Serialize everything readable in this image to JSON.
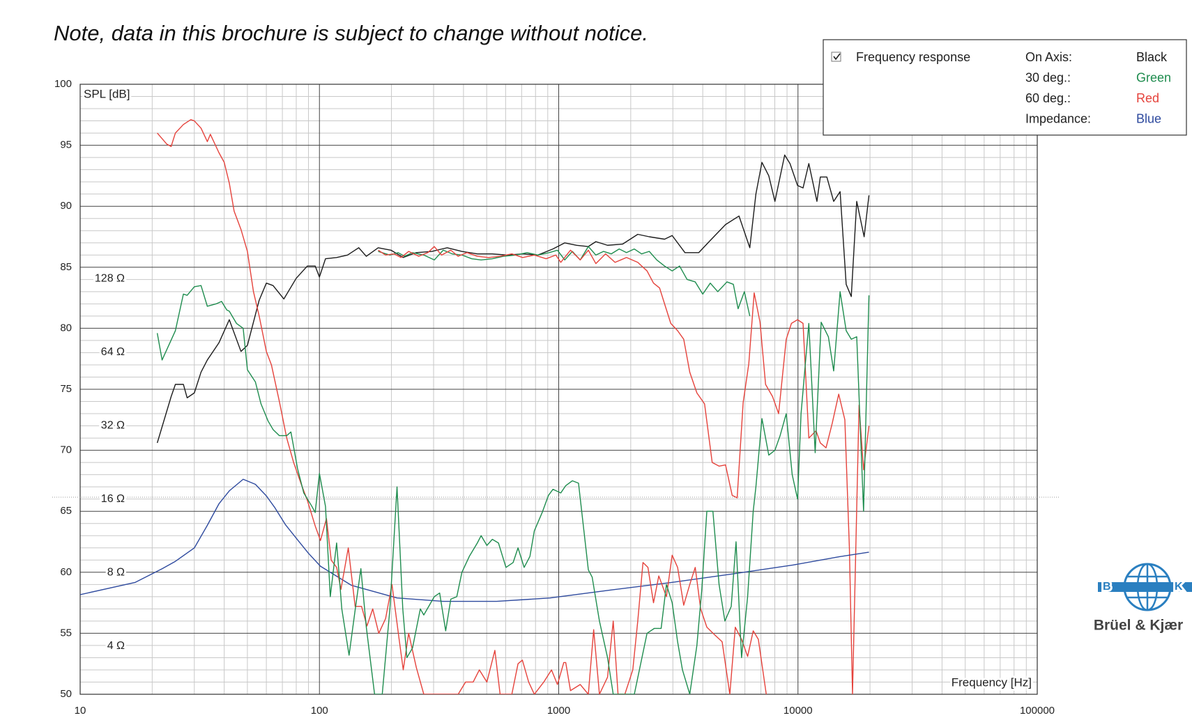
{
  "chart_data": {
    "type": "line",
    "title": "Note, data in this brochure is subject to change without notice.",
    "x_label": "Frequency [Hz]",
    "y_label": "SPL [dB]",
    "xscale": "log",
    "xlim": [
      10,
      100000
    ],
    "xticks": [
      10,
      100,
      1000,
      10000,
      100000
    ],
    "ylim": [
      50,
      100
    ],
    "yticks": [
      50,
      55,
      60,
      65,
      70,
      75,
      80,
      85,
      90,
      95,
      100
    ],
    "y2scale": "log",
    "y2lim": [
      2.54,
      801
    ],
    "y2ticks": [
      {
        "value": 4,
        "label": "4 Ω"
      },
      {
        "value": 8,
        "label": "8 Ω"
      },
      {
        "value": 16,
        "label": "16 Ω"
      },
      {
        "value": 32,
        "label": "32 Ω"
      },
      {
        "value": 64,
        "label": "64 Ω"
      },
      {
        "value": 128,
        "label": "128 Ω"
      }
    ],
    "grid": true,
    "minor_grid": true,
    "legend": {
      "title": "Frequency response",
      "position": "upper right",
      "color_names": [
        "Black",
        "Green",
        "Red",
        "Blue"
      ]
    },
    "series": [
      {
        "name": "On Axis:",
        "color": "#1b1b1b",
        "x": [
          21,
          24,
          25,
          27,
          28,
          30,
          32,
          34,
          38,
          42,
          47,
          50,
          56,
          60,
          64,
          71,
          80,
          89,
          96,
          100,
          106,
          118,
          131,
          146,
          157,
          176,
          199,
          224,
          254,
          295,
          342,
          394,
          457,
          528,
          611,
          707,
          818,
          946,
          1060,
          1190,
          1330,
          1430,
          1600,
          1850,
          2140,
          2390,
          2770,
          2980,
          3370,
          3850,
          4300,
          4980,
          5670,
          6290,
          6670,
          7070,
          7550,
          8010,
          8800,
          9260,
          9960,
          10500,
          11100,
          12000,
          12400,
          13200,
          14100,
          15000,
          15900,
          16700,
          17600,
          18900,
          19800
        ],
        "values": [
          70.6,
          74.4,
          75.4,
          75.4,
          74.3,
          74.7,
          76.4,
          77.4,
          78.8,
          80.7,
          78.1,
          78.6,
          82.3,
          83.7,
          83.5,
          82.4,
          84.1,
          85.1,
          85.1,
          84.2,
          85.7,
          85.8,
          86.0,
          86.6,
          85.9,
          86.6,
          86.4,
          85.8,
          86.2,
          86.3,
          86.6,
          86.3,
          86.1,
          86.1,
          86.0,
          86.1,
          86.0,
          86.5,
          87.0,
          86.8,
          86.7,
          87.1,
          86.8,
          86.9,
          87.7,
          87.5,
          87.3,
          87.6,
          86.2,
          86.2,
          87.2,
          88.5,
          89.2,
          86.6,
          91.0,
          93.6,
          92.5,
          90.4,
          94.2,
          93.5,
          91.7,
          91.5,
          93.5,
          90.4,
          92.4,
          92.4,
          90.4,
          91.2,
          83.6,
          82.6,
          90.4,
          87.5,
          90.9
        ]
      },
      {
        "name": "30 deg.:",
        "color": "#1e8c4e",
        "x": [
          176,
          197,
          213,
          227,
          245,
          273,
          302,
          329,
          359,
          394,
          433,
          474,
          528,
          587,
          660,
          737,
          818,
          912,
          988,
          1060,
          1140,
          1230,
          1330,
          1430,
          1540,
          1660,
          1790,
          1920,
          2070,
          2220,
          2390,
          2570,
          2770,
          2980,
          3200,
          3440,
          3720,
          4000,
          4300,
          4620,
          5050,
          5370,
          5620,
          5970,
          6290
        ],
        "values": [
          86.3,
          86.0,
          86.2,
          85.9,
          86.2,
          86.0,
          85.6,
          86.4,
          86.1,
          86.0,
          85.7,
          85.6,
          85.7,
          85.9,
          86.0,
          86.2,
          86.0,
          86.2,
          86.4,
          85.6,
          86.3,
          85.6,
          86.7,
          86.0,
          86.3,
          86.1,
          86.5,
          86.2,
          86.5,
          86.1,
          86.3,
          85.6,
          85.1,
          84.7,
          85.1,
          84.0,
          83.8,
          82.8,
          83.7,
          83.0,
          83.8,
          83.6,
          81.6,
          83.0,
          81.0
        ]
      },
      {
        "name": "60 deg.:",
        "color": "#e5423b",
        "x": [
          176,
          189,
          205,
          219,
          236,
          260,
          284,
          302,
          324,
          354,
          380,
          414,
          457,
          509,
          569,
          637,
          707,
          791,
          886,
          973,
          1020,
          1120,
          1230,
          1330,
          1430,
          1570,
          1720,
          1920,
          2140,
          2340,
          2490,
          2640,
          2770,
          2940,
          3140,
          3330,
          3530,
          3780,
          4070,
          4380,
          4680,
          4980,
          5310,
          5570,
          5900,
          6230,
          6560,
          6940,
          7320,
          7830,
          8300,
          8930,
          9390,
          9960,
          10500,
          11100,
          11900,
          12400,
          13100,
          13900,
          14800,
          15700,
          16400,
          16900,
          18000,
          18800,
          19800
        ],
        "values": [
          86.4,
          86.0,
          86.1,
          85.8,
          86.3,
          85.9,
          86.2,
          86.7,
          86.0,
          86.4,
          85.9,
          86.2,
          85.9,
          85.8,
          85.9,
          86.1,
          85.8,
          86.0,
          85.7,
          86.0,
          85.4,
          86.4,
          85.6,
          86.4,
          85.3,
          86.1,
          85.4,
          85.8,
          85.4,
          84.7,
          83.7,
          83.3,
          82.0,
          80.4,
          79.8,
          79.1,
          76.4,
          74.7,
          73.8,
          69.0,
          68.7,
          68.8,
          66.3,
          66.1,
          73.9,
          77.1,
          82.9,
          80.5,
          75.4,
          74.4,
          73.0,
          79.1,
          80.4,
          80.7,
          80.4,
          71.0,
          71.6,
          70.6,
          70.2,
          72.2,
          74.6,
          72.5,
          62.0,
          50.0,
          73.7,
          68.4,
          72.0
        ]
      },
      {
        "name": "Impedance:",
        "color": "#2e4a9e",
        "axis": "y2",
        "x": [
          10,
          17,
          22,
          25,
          30,
          34,
          38,
          42,
          48,
          54,
          60,
          65,
          72,
          81,
          90,
          101,
          136,
          211,
          329,
          550,
          920,
          1670,
          2980,
          5330,
          9560,
          14900,
          19800
        ],
        "values": [
          6.5,
          7.3,
          8.3,
          8.9,
          10.1,
          12.5,
          15.3,
          17.3,
          19.3,
          18.4,
          16.5,
          14.8,
          12.6,
          10.9,
          9.6,
          8.5,
          7.1,
          6.3,
          6.1,
          6.1,
          6.3,
          6.8,
          7.3,
          7.9,
          8.6,
          9.3,
          9.7
        ]
      },
      {
        "color": "#e5423b",
        "x": [
          21,
          23,
          24,
          25,
          27,
          29,
          30,
          32,
          34,
          35,
          38,
          40,
          42,
          44,
          47,
          50,
          53,
          56,
          60,
          63,
          68,
          73,
          78,
          84,
          89,
          96,
          101,
          107,
          112,
          118,
          123,
          132,
          141,
          150,
          158,
          167,
          177,
          189,
          201,
          215,
          224,
          236,
          254,
          273,
          305,
          329,
          380,
          408,
          439,
          466,
          501,
          541,
          569,
          637,
          676,
          705,
          749,
          791,
          866,
          933,
          988,
          1050,
          1070,
          1120,
          1230,
          1330,
          1400,
          1480,
          1600,
          1690,
          1770,
          1890,
          2040,
          2140,
          2250,
          2360,
          2490,
          2620,
          2820,
          2980,
          3140,
          3330,
          3530,
          3720,
          3920,
          4160,
          4470,
          4820,
          5190,
          5470,
          5810,
          6160,
          6500,
          6830,
          7370
        ],
        "values": [
          96.0,
          95.1,
          94.9,
          96.0,
          96.7,
          97.1,
          97.0,
          96.4,
          95.3,
          95.9,
          94.4,
          93.6,
          91.9,
          89.6,
          88.1,
          86.3,
          83.0,
          81.0,
          78.1,
          77.0,
          74.0,
          71.0,
          69.0,
          67.2,
          65.9,
          63.8,
          62.6,
          64.4,
          61.0,
          60.4,
          58.6,
          62.0,
          57.2,
          57.2,
          55.6,
          57.0,
          55.0,
          56.2,
          59.0,
          54.6,
          52.0,
          55.0,
          52.2,
          50.0,
          50.0,
          50.0,
          50.0,
          51.0,
          51.0,
          52.0,
          51.0,
          53.6,
          50.0,
          50.0,
          52.5,
          52.8,
          51.0,
          50.0,
          51.0,
          52.0,
          50.8,
          52.6,
          52.6,
          50.3,
          50.8,
          50.0,
          55.3,
          50.0,
          51.4,
          56.0,
          50.0,
          50.0,
          52.0,
          56.0,
          60.8,
          60.4,
          57.5,
          59.7,
          58.0,
          61.4,
          60.4,
          57.3,
          59.0,
          60.4,
          57.0,
          55.5,
          54.9,
          54.3,
          50.0,
          55.5,
          54.5,
          53.1,
          55.2,
          54.5,
          50.0
        ]
      },
      {
        "color": "#1e8c4e",
        "x": [
          21,
          22,
          25,
          27,
          28,
          30,
          32,
          34,
          37,
          39,
          41,
          42,
          45,
          48,
          50,
          54,
          57,
          61,
          64,
          68,
          73,
          76,
          81,
          86,
          93,
          96,
          100,
          106,
          111,
          118,
          124,
          133,
          141,
          149,
          157,
          170,
          183,
          197,
          211,
          223,
          232,
          245,
          264,
          273,
          302,
          318,
          337,
          354,
          375,
          394,
          423,
          457,
          474,
          501,
          528,
          560,
          602,
          645,
          676,
          717,
          758,
          791,
          853,
          906,
          946,
          1020,
          1070,
          1140,
          1210,
          1330,
          1380,
          1480,
          1600,
          1690,
          1770,
          2070,
          2340,
          2510,
          2680,
          2820,
          2980,
          3140,
          3290,
          3530,
          3780,
          3960,
          4160,
          4410,
          4680,
          4950,
          5260,
          5510,
          5810,
          6160,
          6500,
          6670,
          7070,
          7550,
          8010,
          8420,
          8930,
          9460,
          9960,
          10300,
          11100,
          11800,
          12500,
          13400,
          14100,
          15000,
          15900,
          16700,
          17600,
          18800,
          19800
        ],
        "values": [
          79.6,
          77.4,
          79.8,
          82.8,
          82.7,
          83.4,
          83.5,
          81.8,
          82.0,
          82.2,
          81.5,
          81.4,
          80.4,
          80.0,
          76.6,
          75.6,
          73.8,
          72.4,
          71.7,
          71.2,
          71.2,
          71.5,
          68.5,
          66.5,
          65.4,
          64.9,
          68.1,
          65.4,
          58.0,
          62.4,
          57.0,
          53.2,
          56.9,
          60.3,
          55.5,
          50.0,
          50.0,
          57.0,
          67.0,
          57.0,
          53.0,
          53.8,
          57.0,
          56.5,
          58.0,
          58.3,
          55.2,
          57.8,
          58.0,
          60.0,
          61.3,
          62.4,
          63.0,
          62.2,
          62.7,
          62.4,
          60.4,
          60.8,
          62.0,
          60.4,
          61.3,
          63.4,
          64.9,
          66.3,
          66.8,
          66.5,
          67.1,
          67.5,
          67.3,
          60.2,
          59.6,
          56.0,
          53.0,
          50.0,
          50.0,
          50.0,
          55.0,
          55.4,
          55.4,
          59.0,
          57.5,
          54.3,
          52.0,
          50.0,
          54.0,
          58.5,
          65.0,
          65.0,
          59.0,
          56.0,
          57.2,
          62.5,
          53.0,
          58.0,
          65.0,
          67.0,
          72.6,
          69.6,
          70.0,
          71.2,
          73.0,
          68.0,
          66.0,
          73.0,
          80.4,
          69.8,
          80.5,
          79.3,
          76.5,
          83.0,
          79.8,
          79.1,
          79.3,
          65.0,
          82.7
        ]
      }
    ]
  },
  "logo": {
    "letters": [
      "B",
      "K"
    ],
    "text": "Brüel & Kjær"
  }
}
